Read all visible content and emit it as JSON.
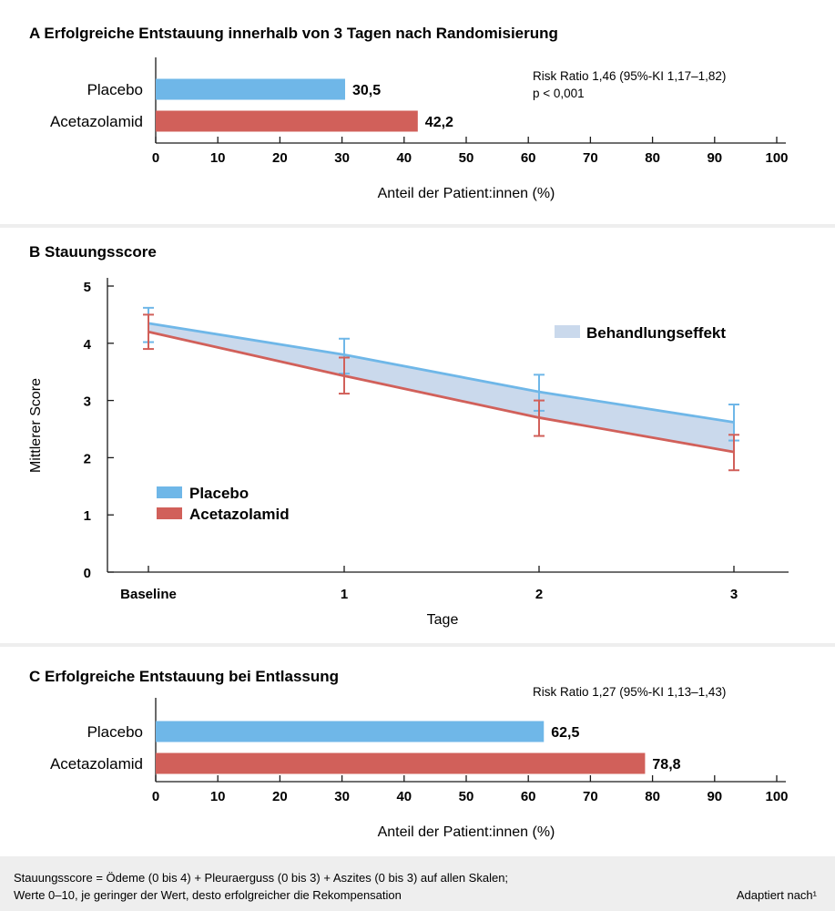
{
  "colors": {
    "placebo": "#6fb7e8",
    "acetazolamid": "#d1605a",
    "band": "#cad9ec",
    "panel": "#ffffff",
    "background": "#eeeeee",
    "axis": "#1a1a1a"
  },
  "chart_data": [
    {
      "type": "bar",
      "orientation": "horizontal",
      "title": "A Erfolgreiche Entstauung innerhalb von 3 Tagen nach Randomisierung",
      "categories": [
        "Placebo",
        "Acetazolamid"
      ],
      "values": [
        30.5,
        42.2
      ],
      "value_labels": [
        "30,5",
        "42,2"
      ],
      "xlabel": "Anteil der Patient:innen (%)",
      "xlim": [
        0,
        100
      ],
      "xticks": [
        0,
        10,
        20,
        30,
        40,
        50,
        60,
        70,
        80,
        90,
        100
      ],
      "annotations": [
        "Risk Ratio 1,46 (95%-KI 1,17–1,82)",
        "p < 0,001"
      ]
    },
    {
      "type": "line",
      "title": "B Stauungsscore",
      "x": [
        0,
        1,
        2,
        3
      ],
      "xtick_labels": [
        "Baseline",
        "1",
        "2",
        "3"
      ],
      "xlabel": "Tage",
      "ylabel": "Mittlerer Score",
      "ylim": [
        0,
        5
      ],
      "yticks": [
        0,
        1,
        2,
        3,
        4,
        5
      ],
      "series": [
        {
          "name": "Placebo",
          "values": [
            4.35,
            3.8,
            3.15,
            2.62
          ],
          "err_low": [
            4.02,
            3.47,
            2.82,
            2.3
          ],
          "err_high": [
            4.62,
            4.08,
            3.45,
            2.93
          ]
        },
        {
          "name": "Acetazolamid",
          "values": [
            4.2,
            3.43,
            2.7,
            2.1
          ],
          "err_low": [
            3.9,
            3.12,
            2.38,
            1.78
          ],
          "err_high": [
            4.5,
            3.75,
            3.0,
            2.4
          ]
        }
      ],
      "band_label": "Behandlungseffekt",
      "legend": "lower-left"
    },
    {
      "type": "bar",
      "orientation": "horizontal",
      "title": "C Erfolgreiche Entstauung bei Entlassung",
      "categories": [
        "Placebo",
        "Acetazolamid"
      ],
      "values": [
        62.5,
        78.8
      ],
      "value_labels": [
        "62,5",
        "78,8"
      ],
      "xlabel": "Anteil der Patient:innen (%)",
      "xlim": [
        0,
        100
      ],
      "xticks": [
        0,
        10,
        20,
        30,
        40,
        50,
        60,
        70,
        80,
        90,
        100
      ],
      "annotations": [
        "Risk Ratio 1,27 (95%-KI 1,13–1,43)"
      ]
    }
  ],
  "footnote": {
    "line1": "Stauungsscore = Ödeme (0 bis 4) + Pleuraerguss (0 bis 3) + Aszites (0 bis 3) auf allen Skalen;",
    "line2": "Werte 0–10, je geringer der Wert, desto erfolgreicher die Rekompensation",
    "source": "Adaptiert nach¹"
  }
}
